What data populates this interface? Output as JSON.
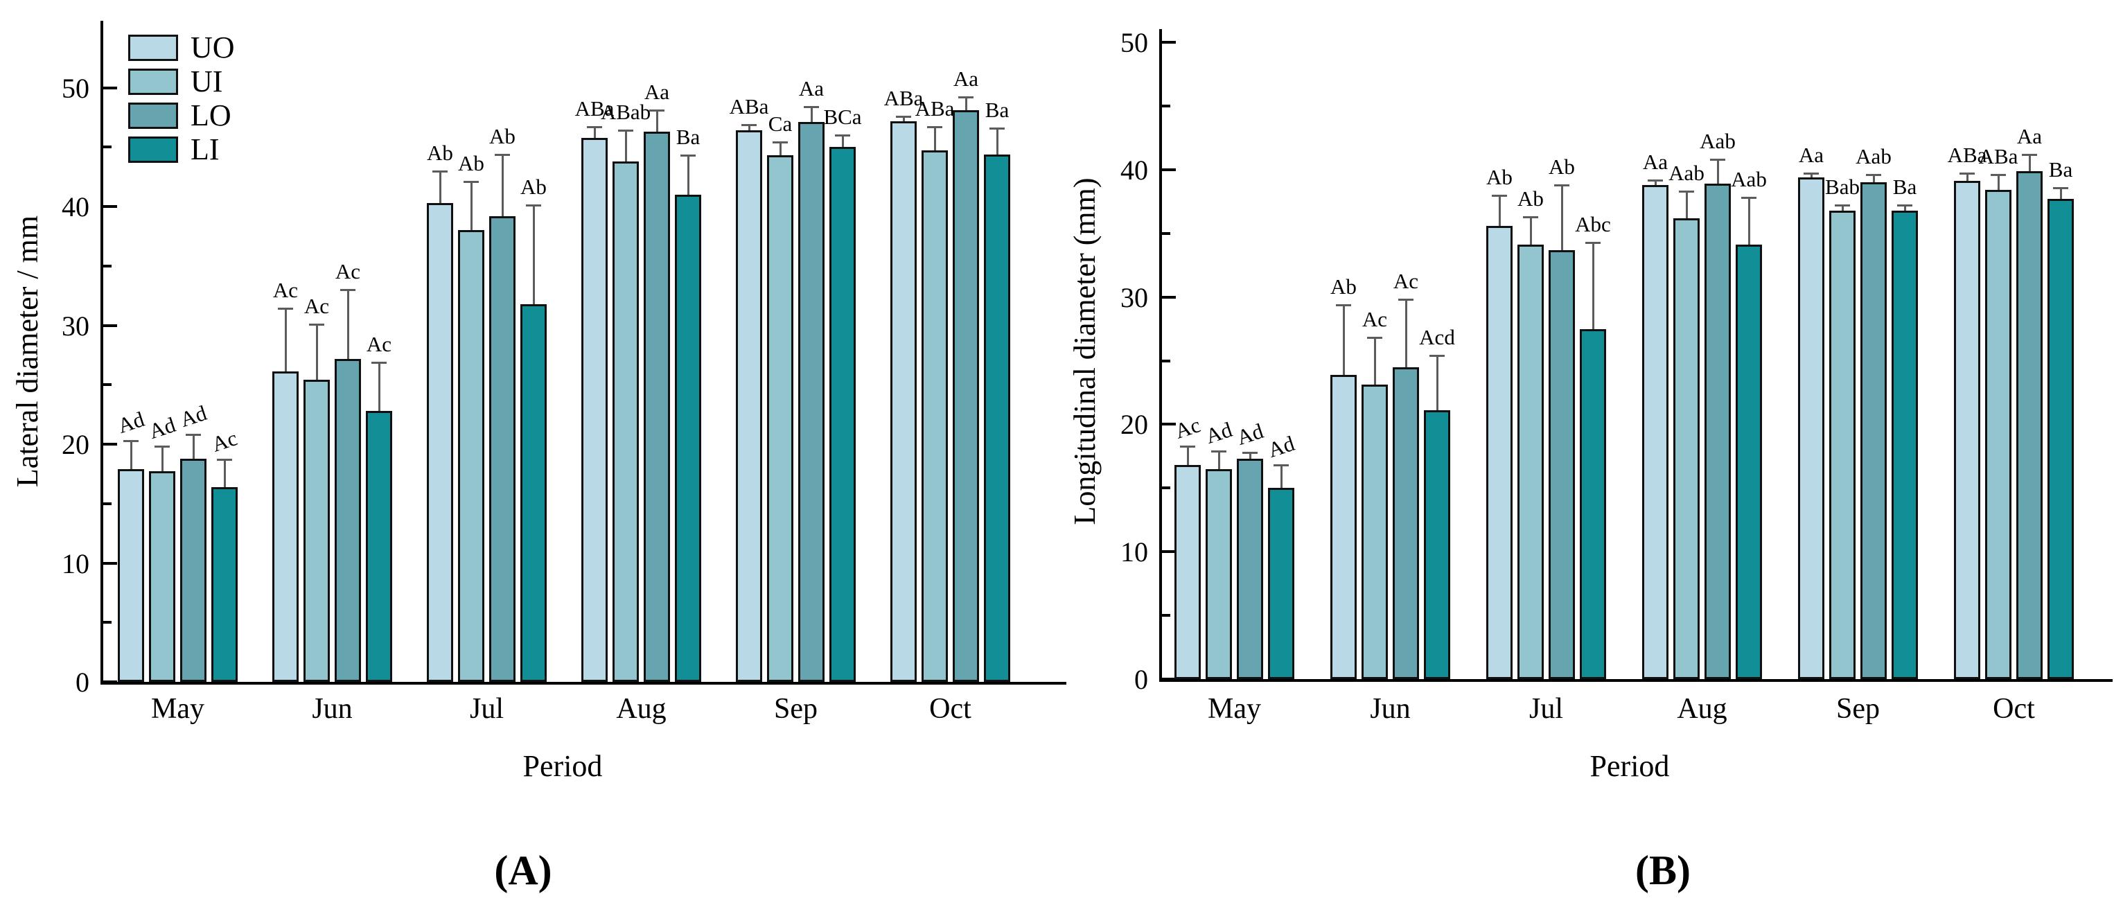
{
  "figure": {
    "background": "#ffffff",
    "captions": {
      "a": "(A)",
      "b": "(B)"
    },
    "legend": {
      "position": "upper-left-inside-panel-A",
      "items": [
        {
          "label": "UO",
          "color": "#b9d9e6"
        },
        {
          "label": "UI",
          "color": "#93c5cf"
        },
        {
          "label": "LO",
          "color": "#66a4af"
        },
        {
          "label": "LI",
          "color": "#118e96"
        }
      ]
    }
  },
  "chart_data": [
    {
      "type": "bar",
      "panel": "A",
      "title": "",
      "xlabel": "Period",
      "ylabel": "Lateral diameter / mm",
      "categories": [
        "May",
        "Jun",
        "Jul",
        "Aug",
        "Sep",
        "Oct"
      ],
      "ylim": [
        0,
        50
      ],
      "yticks": [
        0,
        10,
        20,
        30,
        40,
        50
      ],
      "ytick_minor_step": 5,
      "grid": false,
      "error_bars": "one-sided-upper",
      "series": [
        {
          "name": "UO",
          "color": "#b9d9e6",
          "values": [
            17.9,
            26.1,
            40.3,
            45.8,
            46.4,
            47.2
          ],
          "errors": [
            2.4,
            5.3,
            2.7,
            0.9,
            0.5,
            0.4
          ],
          "sig_labels": [
            "Ad",
            "Ac",
            "Ab",
            "ABa",
            "ABa",
            "ABa"
          ]
        },
        {
          "name": "UI",
          "color": "#93c5cf",
          "values": [
            17.7,
            25.4,
            38.0,
            43.8,
            44.3,
            44.7
          ],
          "errors": [
            2.1,
            4.7,
            4.1,
            2.6,
            1.1,
            2.0
          ],
          "sig_labels": [
            "Ad",
            "Ac",
            "Ab",
            "ABab",
            "Ca",
            "ABa"
          ]
        },
        {
          "name": "LO",
          "color": "#66a4af",
          "values": [
            18.8,
            27.2,
            39.2,
            46.3,
            47.1,
            48.1
          ],
          "errors": [
            2.0,
            5.8,
            5.2,
            1.8,
            1.3,
            1.1
          ],
          "sig_labels": [
            "Ad",
            "Ac",
            "Ab",
            "Aa",
            "Aa",
            "Aa"
          ]
        },
        {
          "name": "LI",
          "color": "#118e96",
          "values": [
            16.4,
            22.8,
            31.8,
            41.0,
            45.0,
            44.4
          ],
          "errors": [
            2.3,
            4.1,
            8.3,
            3.3,
            1.0,
            2.2
          ],
          "sig_labels": [
            "Ac",
            "Ac",
            "Ab",
            "Ba",
            "BCa",
            "Ba"
          ]
        }
      ]
    },
    {
      "type": "bar",
      "panel": "B",
      "title": "",
      "xlabel": "Period",
      "ylabel": "Longitudinal diameter (mm)",
      "categories": [
        "May",
        "Jun",
        "Jul",
        "Aug",
        "Sep",
        "Oct"
      ],
      "ylim": [
        0,
        50
      ],
      "yticks": [
        0,
        10,
        20,
        30,
        40,
        50
      ],
      "ytick_minor_step": 5,
      "grid": false,
      "error_bars": "one-sided-upper",
      "series": [
        {
          "name": "UO",
          "color": "#b9d9e6",
          "values": [
            16.8,
            23.9,
            35.6,
            38.8,
            39.4,
            39.1
          ],
          "errors": [
            1.5,
            5.5,
            2.4,
            0.4,
            0.3,
            0.6
          ],
          "sig_labels": [
            "Ac",
            "Ab",
            "Ab",
            "Aa",
            "Aa",
            "ABa"
          ]
        },
        {
          "name": "UI",
          "color": "#93c5cf",
          "values": [
            16.5,
            23.1,
            34.1,
            36.2,
            36.8,
            38.4
          ],
          "errors": [
            1.4,
            3.7,
            2.2,
            2.1,
            0.4,
            1.2
          ],
          "sig_labels": [
            "Ad",
            "Ac",
            "Ab",
            "Aab",
            "Bab",
            "ABa"
          ]
        },
        {
          "name": "LO",
          "color": "#66a4af",
          "values": [
            17.3,
            24.5,
            33.7,
            38.9,
            39.0,
            39.9
          ],
          "errors": [
            0.5,
            5.3,
            5.1,
            1.9,
            0.6,
            1.3
          ],
          "sig_labels": [
            "Ad",
            "Ac",
            "Ab",
            "Aab",
            "Aab",
            "Aa"
          ]
        },
        {
          "name": "LI",
          "color": "#118e96",
          "values": [
            15.0,
            21.1,
            27.5,
            34.1,
            36.8,
            37.7
          ],
          "errors": [
            1.8,
            4.3,
            6.8,
            3.7,
            0.4,
            0.9
          ],
          "sig_labels": [
            "Ad",
            "Acd",
            "Abc",
            "Aab",
            "Ba",
            "Ba"
          ]
        }
      ]
    }
  ]
}
